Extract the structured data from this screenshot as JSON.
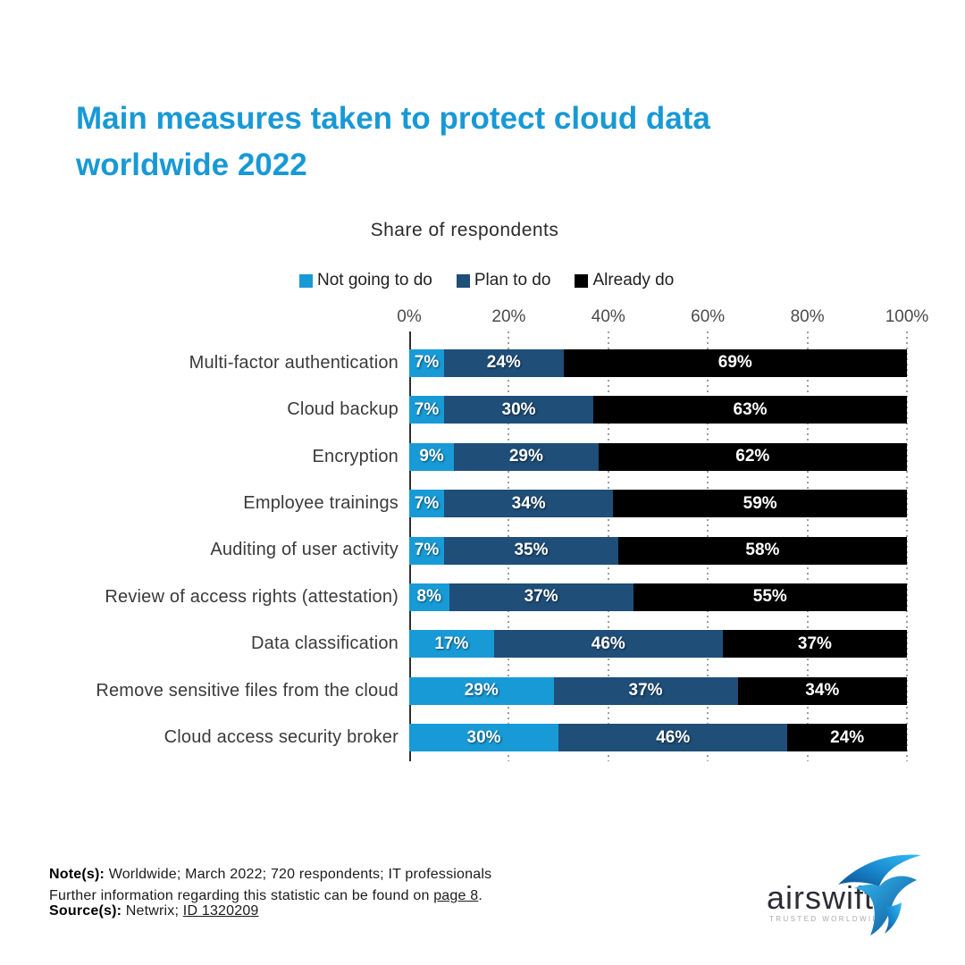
{
  "page": {
    "title": "Main measures taken to protect cloud data worldwide 2022",
    "title_color": "#1899d6",
    "background_color": "#ffffff"
  },
  "chart_data": {
    "type": "bar",
    "variant": "horizontal-stacked",
    "title": "Share of respondents",
    "xlabel": "",
    "ylabel": "",
    "xlim": [
      0,
      100
    ],
    "x_ticks": [
      "0%",
      "20%",
      "40%",
      "60%",
      "80%",
      "100%"
    ],
    "grid": "dashed vertical gridlines at 20% steps",
    "legend_position": "top",
    "value_label_format": "percent",
    "categories": [
      "Multi-factor authentication",
      "Cloud backup",
      "Encryption",
      "Employee trainings",
      "Auditing of user activity",
      "Review of access rights (attestation)",
      "Data classification",
      "Remove sensitive files from the cloud",
      "Cloud access security broker"
    ],
    "series": [
      {
        "name": "Not going to do",
        "color": "#189ad6",
        "values": [
          7,
          7,
          9,
          7,
          7,
          8,
          17,
          29,
          30
        ]
      },
      {
        "name": "Plan to do",
        "color": "#1f4e79",
        "values": [
          24,
          30,
          29,
          34,
          35,
          37,
          46,
          37,
          46
        ]
      },
      {
        "name": "Already do",
        "color": "#000000",
        "values": [
          69,
          63,
          62,
          59,
          58,
          55,
          37,
          34,
          24
        ]
      }
    ],
    "axis_color": "#2e2e2e",
    "gridline_color": "#9e9e9e"
  },
  "footer": {
    "note_label": "Note(s):",
    "note_text": " Worldwide; March 2022; 720 respondents; IT professionals",
    "further_prefix": "Further information regarding this statistic can be found on ",
    "further_link": "page 8",
    "further_suffix": ".",
    "source_label": "Source(s):",
    "source_text": " Netwrix; ",
    "source_link": "ID 1320209"
  },
  "logo": {
    "wordmark": "airswift",
    "tagline": "TRUSTED WORLDWIDE",
    "bird_color_dark": "#0b4f8f",
    "bird_color_light": "#35baf3"
  }
}
